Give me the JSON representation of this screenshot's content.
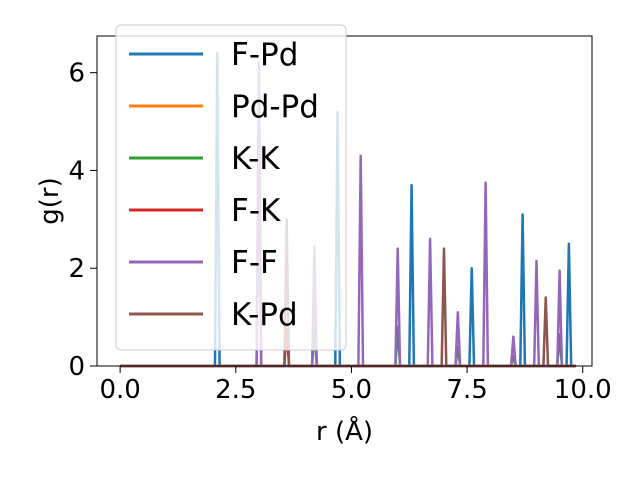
{
  "chart_data": {
    "type": "line",
    "xlabel": "r (Å)",
    "ylabel": "g(r)",
    "xlim": [
      -0.5,
      10.2
    ],
    "ylim": [
      0,
      6.75
    ],
    "xticks": [
      0.0,
      2.5,
      5.0,
      7.5,
      10.0
    ],
    "xtick_labels": [
      "0.0",
      "2.5",
      "5.0",
      "7.5",
      "10.0"
    ],
    "yticks": [
      0,
      2,
      4,
      6
    ],
    "ytick_labels": [
      "0",
      "2",
      "4",
      "6"
    ],
    "grid": false,
    "legend_position": "upper-left",
    "series": [
      {
        "name": "F-Pd",
        "color": "#1f77b4",
        "peaks": [
          [
            2.1,
            6.4
          ],
          [
            3.0,
            4.2
          ],
          [
            4.7,
            5.2
          ],
          [
            6.3,
            3.7
          ],
          [
            7.6,
            2.0
          ],
          [
            8.7,
            3.1
          ],
          [
            9.7,
            2.5
          ]
        ]
      },
      {
        "name": "Pd-Pd",
        "color": "#ff7f0e",
        "peaks": [
          [
            3.0,
            6.0
          ],
          [
            4.2,
            2.0
          ]
        ]
      },
      {
        "name": "K-K",
        "color": "#2ca02c",
        "peaks": [
          [
            4.2,
            0.8
          ],
          [
            6.0,
            0.8
          ],
          [
            7.3,
            0.4
          ],
          [
            8.5,
            0.2
          ],
          [
            9.5,
            0.65
          ]
        ]
      },
      {
        "name": "F-K",
        "color": "#d62728",
        "peaks": [
          [
            3.6,
            0.8
          ]
        ]
      },
      {
        "name": "F-F",
        "color": "#9467bd",
        "peaks": [
          [
            3.0,
            6.2
          ],
          [
            4.2,
            2.45
          ],
          [
            5.2,
            4.3
          ],
          [
            6.0,
            2.4
          ],
          [
            6.7,
            2.6
          ],
          [
            7.3,
            1.1
          ],
          [
            7.9,
            3.75
          ],
          [
            8.5,
            0.6
          ],
          [
            9.0,
            2.15
          ],
          [
            9.5,
            1.95
          ]
        ]
      },
      {
        "name": "K-Pd",
        "color": "#8c564b",
        "peaks": [
          [
            3.6,
            3.0
          ],
          [
            7.0,
            2.4
          ],
          [
            9.2,
            1.4
          ]
        ]
      }
    ]
  }
}
